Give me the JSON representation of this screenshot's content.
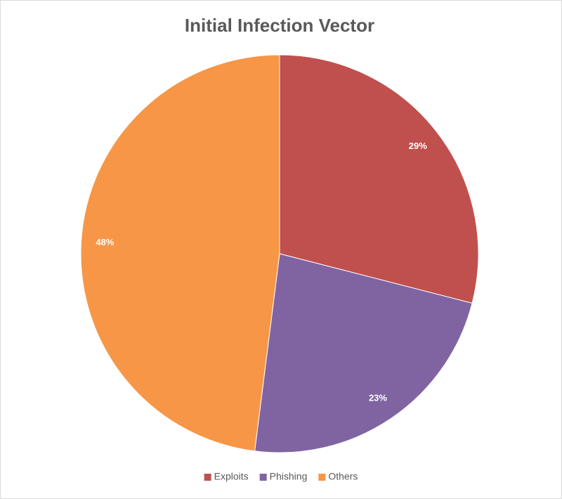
{
  "chart_data": {
    "type": "pie",
    "title": "Initial Infection Vector",
    "categories": [
      "Exploits",
      "Phishing",
      "Others"
    ],
    "values": [
      29,
      23,
      48
    ],
    "value_labels": [
      "29%",
      "23%",
      "48%"
    ],
    "colors": [
      "#c0504d",
      "#8064a2",
      "#f79646"
    ],
    "legend": "bottom"
  }
}
